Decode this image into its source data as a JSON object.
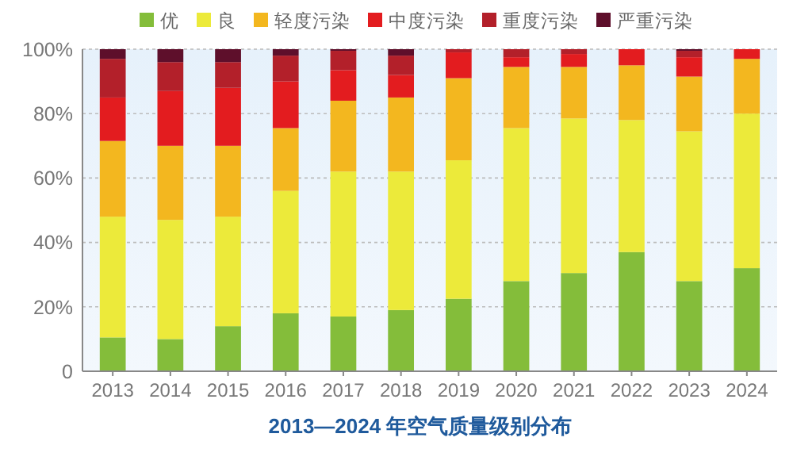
{
  "chart_data": {
    "type": "bar",
    "stacked": true,
    "title": "2013—2024 年空气质量级别分布",
    "categories": [
      "2013",
      "2014",
      "2015",
      "2016",
      "2017",
      "2018",
      "2019",
      "2020",
      "2021",
      "2022",
      "2023",
      "2024"
    ],
    "series": [
      {
        "name": "优",
        "color": "#84bd3a",
        "values": [
          10.5,
          10,
          14,
          18,
          17,
          19,
          22.5,
          28,
          30.5,
          37,
          28,
          32
        ]
      },
      {
        "name": "良",
        "color": "#ecea3a",
        "values": [
          37.5,
          37,
          34,
          38,
          45,
          43,
          43,
          47.5,
          48,
          41,
          46.5,
          48
        ]
      },
      {
        "name": "轻度污染",
        "color": "#f3b71f",
        "values": [
          23.5,
          23,
          22,
          19.5,
          22,
          23,
          25.5,
          19,
          16,
          17,
          17,
          17
        ]
      },
      {
        "name": "中度污染",
        "color": "#e31c1f",
        "values": [
          13.5,
          17,
          18,
          14.5,
          9.5,
          7,
          8,
          3,
          4,
          5,
          6,
          3
        ]
      },
      {
        "name": "重度污染",
        "color": "#b3202a",
        "values": [
          12,
          9,
          8,
          8,
          6,
          6,
          1,
          2.5,
          1.5,
          0,
          2,
          0
        ]
      },
      {
        "name": "严重污染",
        "color": "#5e0f2b",
        "values": [
          3,
          4,
          4,
          2,
          0.5,
          2,
          0,
          0,
          0,
          0,
          0.5,
          0
        ]
      }
    ],
    "ylim": [
      0,
      100
    ],
    "yticks": [
      {
        "value": 0,
        "label": "0"
      },
      {
        "value": 20,
        "label": "20%"
      },
      {
        "value": 40,
        "label": "40%"
      },
      {
        "value": 60,
        "label": "60%"
      },
      {
        "value": 80,
        "label": "80%"
      },
      {
        "value": 100,
        "label": "100%"
      }
    ],
    "grid": "y",
    "legend": "top"
  }
}
